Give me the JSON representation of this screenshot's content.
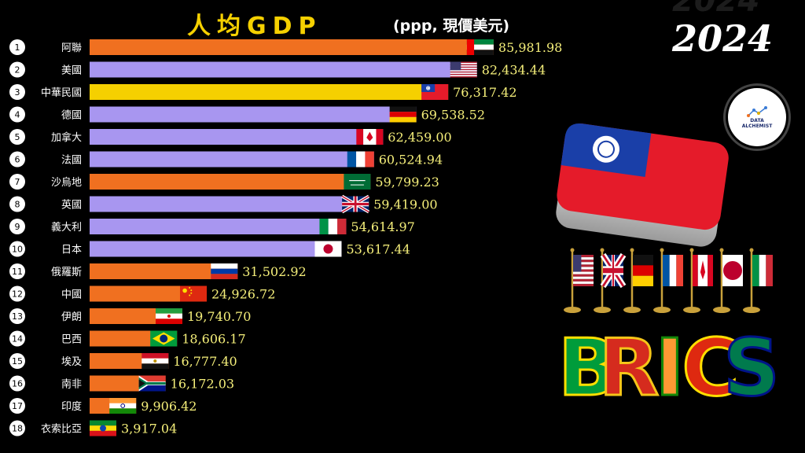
{
  "chart_data": {
    "type": "bar",
    "orientation": "horizontal",
    "title": "人均GDP",
    "subtitle": "(ppp, 現價美元)",
    "year": "2024",
    "categories": [
      "阿聯",
      "美國",
      "中華民國",
      "德國",
      "加拿大",
      "法國",
      "沙烏地",
      "英國",
      "義大利",
      "日本",
      "俄羅斯",
      "中國",
      "伊朗",
      "巴西",
      "埃及",
      "南非",
      "印度",
      "衣索比亞"
    ],
    "ranks": [
      "1",
      "2",
      "3",
      "4",
      "5",
      "6",
      "7",
      "8",
      "9",
      "10",
      "11",
      "12",
      "13",
      "14",
      "15",
      "16",
      "17",
      "18"
    ],
    "values": [
      85981.98,
      82434.44,
      76317.42,
      69538.52,
      62459.0,
      60524.94,
      59799.23,
      59419.0,
      54614.97,
      53617.44,
      31502.92,
      24926.72,
      19740.7,
      18606.17,
      16777.4,
      16172.03,
      9906.42,
      3917.04
    ],
    "value_labels": [
      "85,981.98",
      "82,434.44",
      "76,317.42",
      "69,538.52",
      "62,459.00",
      "60,524.94",
      "59,799.23",
      "59,419.00",
      "54,614.97",
      "53,617.44",
      "31,502.92",
      "24,926.72",
      "19,740.70",
      "18,606.17",
      "16,777.40",
      "16,172.03",
      "9,906.42",
      "3,917.04"
    ],
    "bar_colors": [
      "#f07020",
      "#a896f0",
      "#f5d000",
      "#a896f0",
      "#a896f0",
      "#a896f0",
      "#f07020",
      "#a896f0",
      "#a896f0",
      "#a896f0",
      "#f07020",
      "#f07020",
      "#f07020",
      "#f07020",
      "#f07020",
      "#f07020",
      "#f07020",
      "#f07020"
    ],
    "flags": [
      "uae",
      "usa",
      "taiwan",
      "germany",
      "canada",
      "france",
      "saudi",
      "uk",
      "italy",
      "japan",
      "russia",
      "china",
      "iran",
      "brazil",
      "egypt",
      "south-africa",
      "india",
      "ethiopia"
    ],
    "xlim": [
      0,
      86000
    ],
    "grid": false,
    "legend": "none"
  },
  "logo": {
    "line1": "DATA",
    "line2": "ALCHEMIST"
  },
  "brics_text": [
    "B",
    "R",
    "I",
    "C",
    "S"
  ],
  "table_flags": [
    "usa",
    "uk",
    "germany",
    "france",
    "canada",
    "japan",
    "italy"
  ],
  "colors": {
    "background": "#000000",
    "title": "#f5d000",
    "value": "#f5ef7a"
  }
}
